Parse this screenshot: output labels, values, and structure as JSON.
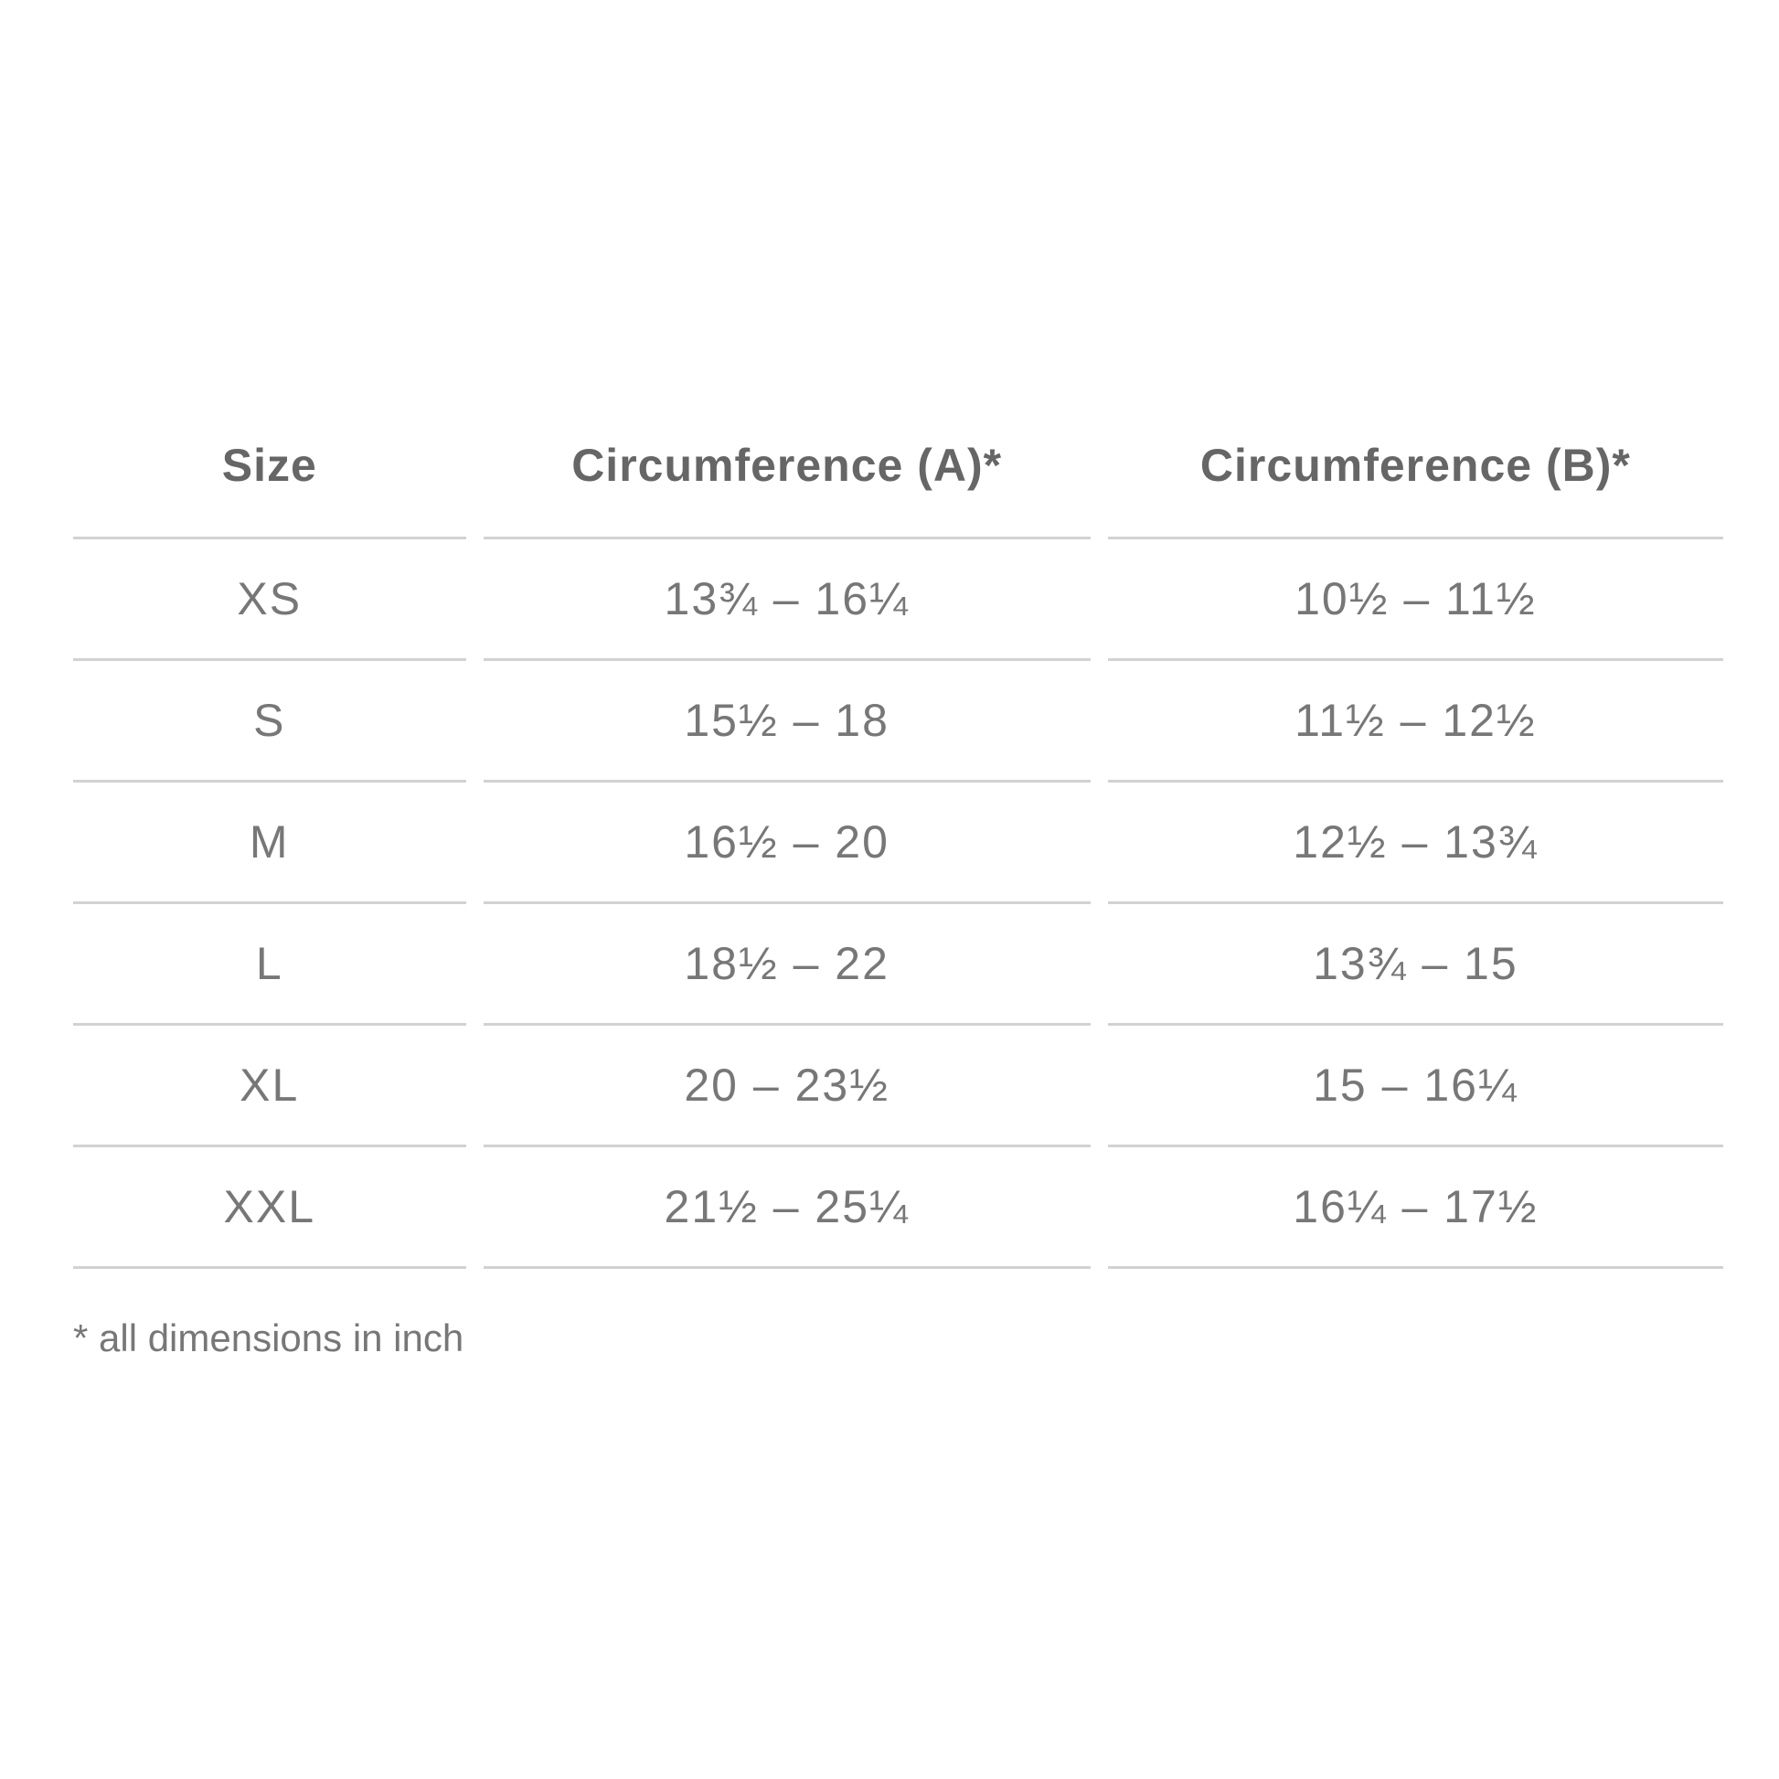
{
  "table": {
    "headers": [
      "Size",
      "Circumference (A)*",
      "Circumference (B)*"
    ],
    "rows": [
      [
        "XS",
        "13¾ – 16¼",
        "10½ – 11½"
      ],
      [
        "S",
        "15½ – 18",
        "11½ – 12½"
      ],
      [
        "M",
        "16½ – 20",
        "12½ – 13¾"
      ],
      [
        "L",
        "18½ – 22",
        "13¾ – 15"
      ],
      [
        "XL",
        "20 – 23½",
        "15 – 16¼"
      ],
      [
        "XXL",
        "21½ – 25¼",
        "16¼ – 17½"
      ]
    ]
  },
  "footnote": "* all dimensions in inch"
}
